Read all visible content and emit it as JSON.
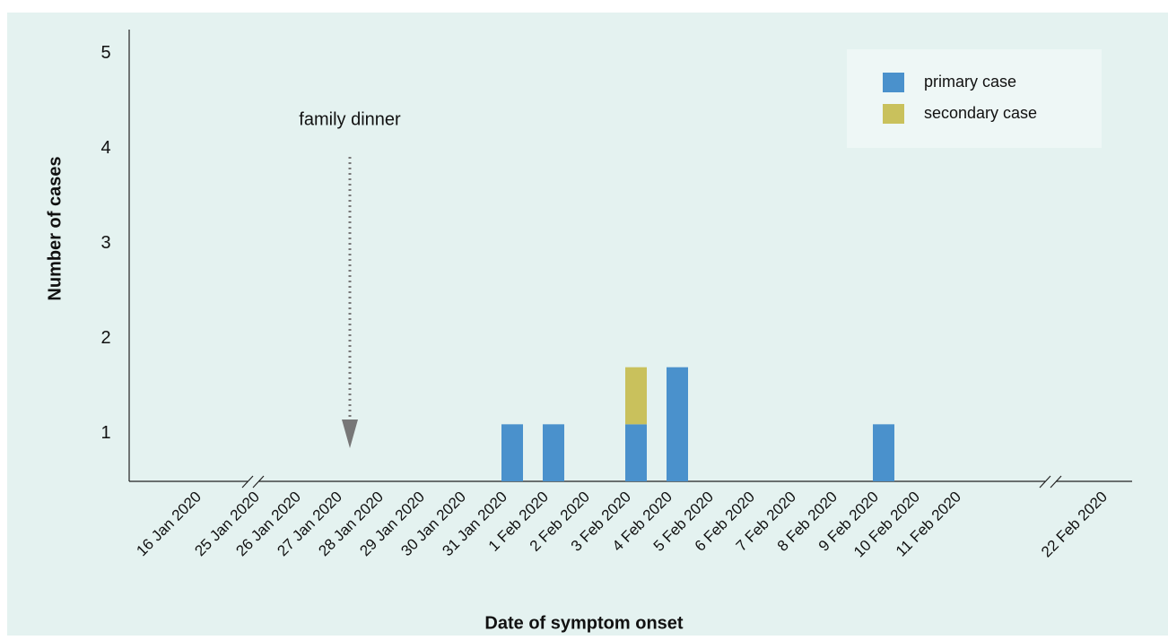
{
  "chart_data": {
    "type": "bar",
    "stacked": true,
    "x_label": "Date of symptom onset",
    "y_label": "Number of cases",
    "annotation": "family dinner",
    "categories": [
      "16 Jan 2020",
      "25 Jan 2020",
      "26 Jan 2020",
      "27 Jan 2020",
      "28 Jan 2020",
      "29 Jan 2020",
      "30 Jan 2020",
      "31 Jan 2020",
      "1 Feb 2020",
      "2 Feb 2020",
      "3 Feb 2020",
      "4 Feb 2020",
      "5 Feb 2020",
      "6 Feb 2020",
      "7 Feb 2020",
      "8 Feb 2020",
      "9 Feb 2020",
      "10 Feb 2020",
      "11 Feb 2020",
      "22 Feb 2020"
    ],
    "series": [
      {
        "name": "primary case",
        "color": "#4a91cc",
        "values": [
          0,
          0,
          0,
          0,
          0,
          0,
          0,
          1.1,
          1.1,
          0,
          1.1,
          1.7,
          0,
          0,
          0,
          0,
          1.1,
          0,
          0,
          0
        ]
      },
      {
        "name": "secondary case",
        "color": "#c9c15c",
        "values": [
          0,
          0,
          0,
          0,
          0,
          0,
          0,
          0,
          0,
          0,
          0.6,
          0,
          0,
          0,
          0,
          0,
          0,
          0,
          0,
          0
        ]
      }
    ],
    "ylim": [
      0.5,
      5.25
    ],
    "yticks": [
      1,
      2,
      3,
      4,
      5
    ],
    "legend": "upper right"
  }
}
